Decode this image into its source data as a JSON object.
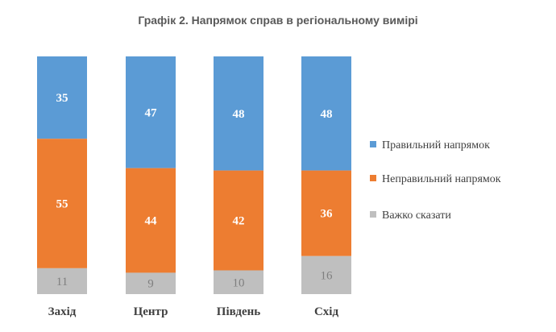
{
  "chart_data": {
    "type": "bar",
    "stacked": true,
    "title": "Графік 2. Напрямок справ в регіональному вимірі",
    "categories": [
      "Захід",
      "Центр",
      "Південь",
      "Схід"
    ],
    "series": [
      {
        "name": "Правильний напрямок",
        "color": "#5b9bd5",
        "values": [
          35,
          47,
          48,
          48
        ]
      },
      {
        "name": "Неправильний напрямок",
        "color": "#ed7d31",
        "values": [
          55,
          44,
          42,
          36
        ]
      },
      {
        "name": "Важко сказати",
        "color": "#bfbfbf",
        "values": [
          11,
          9,
          10,
          16
        ]
      }
    ],
    "legend": "right",
    "grid": false
  }
}
